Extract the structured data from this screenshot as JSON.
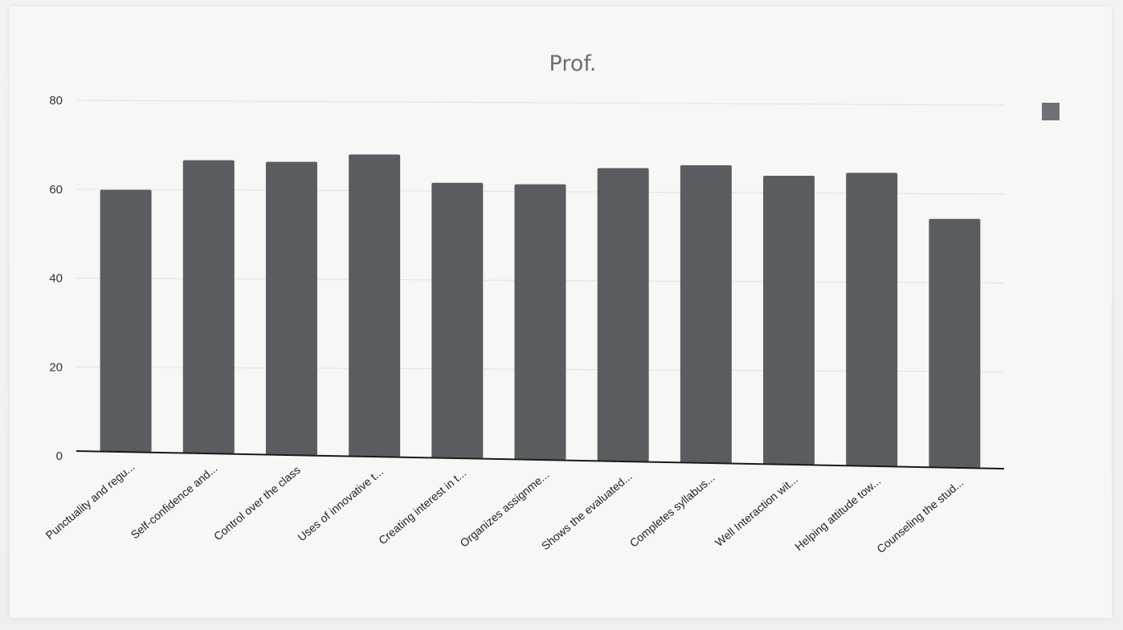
{
  "chart_data": {
    "type": "bar",
    "title": "Prof.",
    "xlabel": "",
    "ylabel": "",
    "ylim": [
      0,
      80
    ],
    "yticks": [
      0,
      20,
      40,
      60,
      80
    ],
    "grid": true,
    "legend": "top-right",
    "categories": [
      "Punctuality and regu...",
      "Self-confidence and...",
      "Control over the class",
      "Uses of innovative t...",
      "Creating interest in t...",
      "Organizes assignme...",
      "Shows the evaluated...",
      "Completes syllabus...",
      "Well Interaction wit...",
      "Helping attitude tow...",
      "Counseling the stud..."
    ],
    "series": [
      {
        "values": [
          59,
          66,
          66,
          68,
          62,
          62,
          66,
          67,
          65,
          66,
          56
        ]
      }
    ],
    "colors": {
      "bar": "#5a5d60",
      "axis": "#1a1a1a",
      "grid": "#e2e2e0"
    }
  }
}
